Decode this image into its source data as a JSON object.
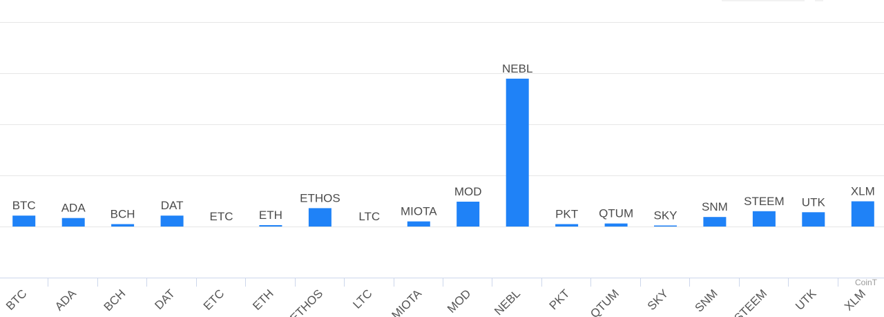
{
  "chart_data": {
    "type": "bar",
    "categories": [
      "BTC",
      "ADA",
      "BCH",
      "DAT",
      "ETC",
      "ETH",
      "ETHOS",
      "LTC",
      "MIOTA",
      "MOD",
      "NEBL",
      "PKT",
      "QTUM",
      "SKY",
      "SNM",
      "STEEM",
      "UTK",
      "XLM"
    ],
    "series": [
      {
        "values": [
          1.6,
          1.25,
          0.35,
          1.6,
          0,
          0.2,
          2.7,
          0,
          0.75,
          3.65,
          21.7,
          0.35,
          0.45,
          0.15,
          1.4,
          2.25,
          2.1,
          3.7
        ]
      }
    ],
    "data_labels": [
      "BTC",
      "ADA",
      "BCH",
      "DAT",
      "ETC",
      "ETH",
      "ETHOS",
      "LTC",
      "MIOTA",
      "MOD",
      "NEBL",
      "PKT",
      "QTUM",
      "SKY",
      "SNM",
      "STEEM",
      "UTK",
      "XLM"
    ],
    "ylim": [
      -7.5,
      30
    ],
    "gridlines": [
      0,
      7.5,
      15,
      22.5,
      30
    ],
    "grid": true,
    "legend": "none",
    "colors": {
      "bar": "#1f82f7",
      "grid": "#e6e6e6",
      "axis": "#ccd6eb",
      "label": "#4a4a4a"
    }
  },
  "credit": "CoinT"
}
